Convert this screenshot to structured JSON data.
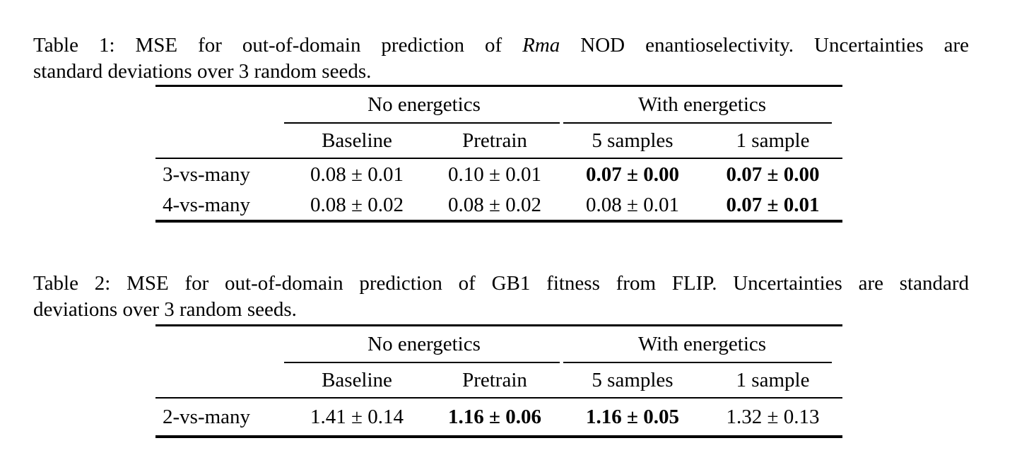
{
  "page": {
    "background_color": "#ffffff",
    "text_color": "#000000",
    "rule_color": "#000000"
  },
  "tables": [
    {
      "caption": {
        "line1_prefix": "Table 1: MSE for out-of-domain prediction of ",
        "line1_italic": "Rma",
        "line1_suffix": " NOD enantioselectivity. Uncertainties are",
        "line2": "standard deviations over 3 random seeds."
      },
      "group_headers": [
        "No energetics",
        "With energetics"
      ],
      "column_headers": [
        "Baseline",
        "Pretrain",
        "5 samples",
        "1 sample"
      ],
      "rows": [
        {
          "label": "3-vs-many",
          "cells": [
            {
              "text": "0.08 ± 0.01",
              "bold": false
            },
            {
              "text": "0.10 ± 0.01",
              "bold": false
            },
            {
              "text": "0.07 ± 0.00",
              "bold": true
            },
            {
              "text": "0.07 ± 0.00",
              "bold": true
            }
          ]
        },
        {
          "label": "4-vs-many",
          "cells": [
            {
              "text": "0.08 ± 0.02",
              "bold": false
            },
            {
              "text": "0.08 ± 0.02",
              "bold": false
            },
            {
              "text": "0.08 ± 0.01",
              "bold": false
            },
            {
              "text": "0.07 ± 0.01",
              "bold": true
            }
          ]
        }
      ]
    },
    {
      "caption": {
        "line1": "Table 2: MSE for out-of-domain prediction of GB1 fitness from FLIP. Uncertainties are standard",
        "line2": "deviations over 3 random seeds."
      },
      "group_headers": [
        "No energetics",
        "With energetics"
      ],
      "column_headers": [
        "Baseline",
        "Pretrain",
        "5 samples",
        "1 sample"
      ],
      "rows": [
        {
          "label": "2-vs-many",
          "cells": [
            {
              "text": "1.41 ± 0.14",
              "bold": false
            },
            {
              "text": "1.16 ± 0.06",
              "bold": true
            },
            {
              "text": "1.16 ± 0.05",
              "bold": true
            },
            {
              "text": "1.32 ± 0.13",
              "bold": false
            }
          ]
        }
      ]
    }
  ]
}
